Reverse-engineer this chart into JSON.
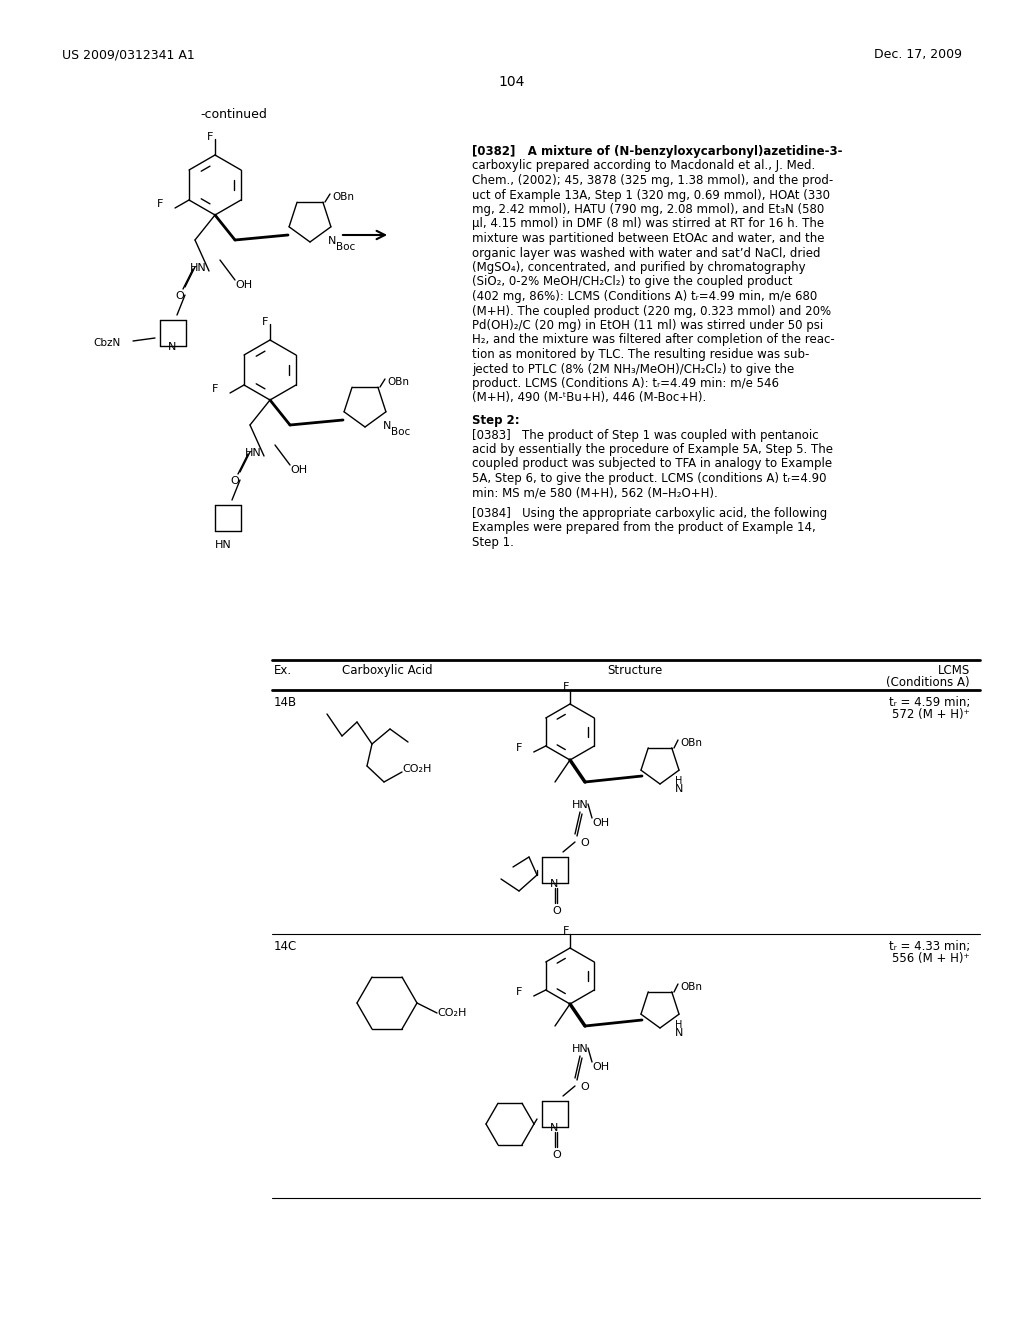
{
  "page_header_left": "US 2009/0312341 A1",
  "page_header_right": "Dec. 17, 2009",
  "page_number": "104",
  "background_color": "#ffffff",
  "text_color": "#000000",
  "lines_0382": [
    "[0382]   A mixture of (N-benzyloxycarbonyl)azetidine-3-",
    "carboxylic prepared according to Macdonald et al., J. Med.",
    "Chem., (2002); 45, 3878 (325 mg, 1.38 mmol), and the prod-",
    "uct of Example 13A, Step 1 (320 mg, 0.69 mmol), HOAt (330",
    "mg, 2.42 mmol), HATU (790 mg, 2.08 mmol), and Et₃N (580",
    "μl, 4.15 mmol) in DMF (8 ml) was stirred at RT for 16 h. The",
    "mixture was partitioned between EtOAc and water, and the",
    "organic layer was washed with water and sat’d NaCl, dried",
    "(MgSO₄), concentrated, and purified by chromatography",
    "(SiO₂, 0-2% MeOH/CH₂Cl₂) to give the coupled product",
    "(402 mg, 86%): LCMS (Conditions A) tᵣ=4.99 min, m/e 680",
    "(M+H). The coupled product (220 mg, 0.323 mmol) and 20%",
    "Pd(OH)₂/C (20 mg) in EtOH (11 ml) was stirred under 50 psi",
    "H₂, and the mixture was filtered after completion of the reac-",
    "tion as monitored by TLC. The resulting residue was sub-",
    "jected to PTLC (8% (2M NH₃/MeOH)/CH₂Cl₂) to give the",
    "product. LCMS (Conditions A): tᵣ=4.49 min: m/e 546",
    "(M+H), 490 (M-ᵗBu+H), 446 (M-Boc+H)."
  ],
  "lines_0383": [
    "Step 2:",
    "[0383]   The product of Step 1 was coupled with pentanoic",
    "acid by essentially the procedure of Example 5A, Step 5. The",
    "coupled product was subjected to TFA in analogy to Example",
    "5A, Step 6, to give the product. LCMS (conditions A) tᵣ=4.90",
    "min: MS m/e 580 (M+H), 562 (M–H₂O+H)."
  ],
  "lines_0384": [
    "[0384]   Using the appropriate carboxylic acid, the following",
    "Examples were prepared from the product of Example 14,",
    "Step 1."
  ],
  "row1_ex": "14B",
  "row1_lcms_1": "tᵣ = 4.59 min;",
  "row1_lcms_2": "572 (M + H)⁺",
  "row2_ex": "14C",
  "row2_lcms_1": "tᵣ = 4.33 min;",
  "row2_lcms_2": "556 (M + H)⁺"
}
